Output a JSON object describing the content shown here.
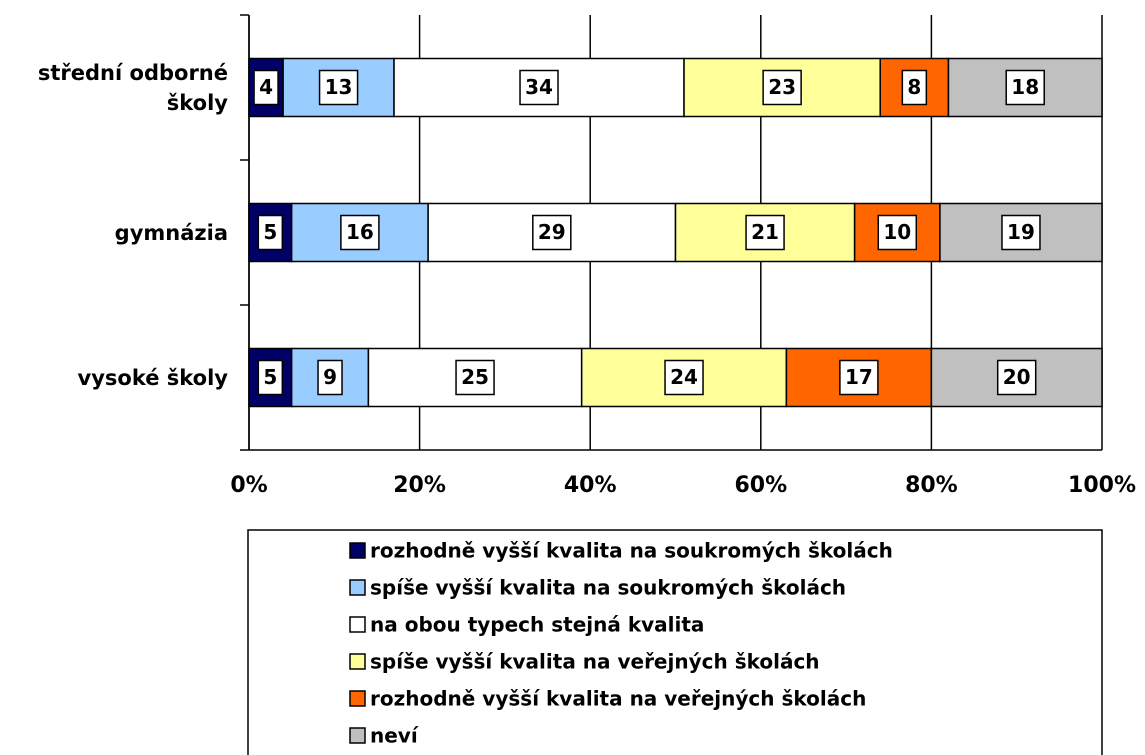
{
  "chart_data": {
    "type": "stacked-bar-horizontal",
    "categories": [
      "střední odborné školy",
      "gymnázia",
      "vysoké školy"
    ],
    "series": [
      {
        "name": "rozhodně vyšší kvalita na soukromých školách",
        "color": "#000066",
        "values": [
          4,
          5,
          5
        ]
      },
      {
        "name": "spíše vyšší kvalita na soukromých školách",
        "color": "#99ccff",
        "values": [
          13,
          16,
          9
        ]
      },
      {
        "name": "na obou typech stejná kvalita",
        "color": "#ffffff",
        "values": [
          34,
          29,
          25
        ]
      },
      {
        "name": "spíše vyšší kvalita na veřejných školách",
        "color": "#ffff99",
        "values": [
          23,
          21,
          24
        ]
      },
      {
        "name": "rozhodně vyšší kvalita na veřejných školách",
        "color": "#ff6600",
        "values": [
          8,
          10,
          17
        ]
      },
      {
        "name": "neví",
        "color": "#c0c0c0",
        "values": [
          18,
          19,
          20
        ]
      }
    ],
    "xlim": [
      0,
      100
    ],
    "xticks": [
      {
        "value": 0,
        "label": "0%"
      },
      {
        "value": 20,
        "label": "20%"
      },
      {
        "value": 40,
        "label": "40%"
      },
      {
        "value": 60,
        "label": "60%"
      },
      {
        "value": 80,
        "label": "80%"
      },
      {
        "value": 100,
        "label": "100%"
      }
    ],
    "grid": true,
    "legend": "bottom"
  }
}
